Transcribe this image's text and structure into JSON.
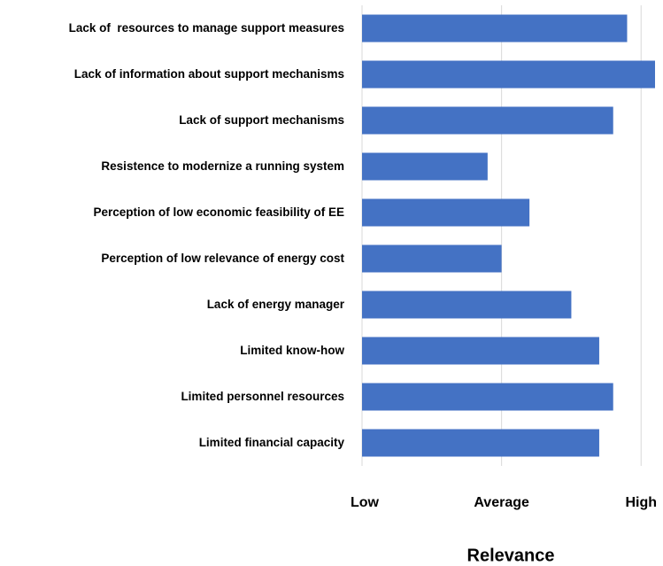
{
  "chart_data": {
    "type": "barh",
    "categories": [
      "Lack of  resources to manage support measures",
      "Lack of information about support mechanisms",
      "Lack of support mechanisms",
      "Resistence to modernize a running system",
      "Perception of low economic feasibility of EE",
      "Perception of low relevance of energy cost",
      "Lack of energy manager",
      "Limited know-how",
      "Limited personnel resources",
      "Limited financial capacity"
    ],
    "values": [
      2.9,
      3.1,
      2.8,
      1.9,
      2.2,
      2.0,
      2.5,
      2.7,
      2.8,
      2.7
    ],
    "color": "#4472c4",
    "xlim": [
      1,
      3.1
    ],
    "xticks": [
      {
        "value": 1,
        "label": "Low"
      },
      {
        "value": 2,
        "label": "Average"
      },
      {
        "value": 3,
        "label": "High"
      }
    ],
    "xlabel": "Relevance",
    "grid": true
  }
}
